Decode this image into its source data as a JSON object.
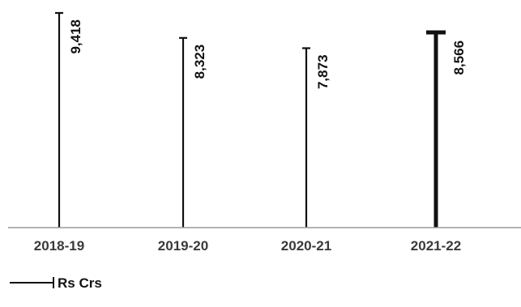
{
  "chart_data": {
    "type": "bar",
    "categories": [
      "2018-19",
      "2019-20",
      "2020-21",
      "2021-22"
    ],
    "values": [
      9418,
      8323,
      7873,
      8566
    ],
    "data_labels": [
      "9,418",
      "8,323",
      "7,873",
      "8,566"
    ],
    "highlighted_category": "2021-22",
    "ylim": [
      0,
      9418
    ],
    "grid": false,
    "legend": {
      "label": "Rs Crs",
      "position": "bottom-left"
    },
    "colors": {
      "bar": "#111111",
      "axis": "#9a9a9a",
      "tick_text": "#3a3a3a"
    }
  }
}
